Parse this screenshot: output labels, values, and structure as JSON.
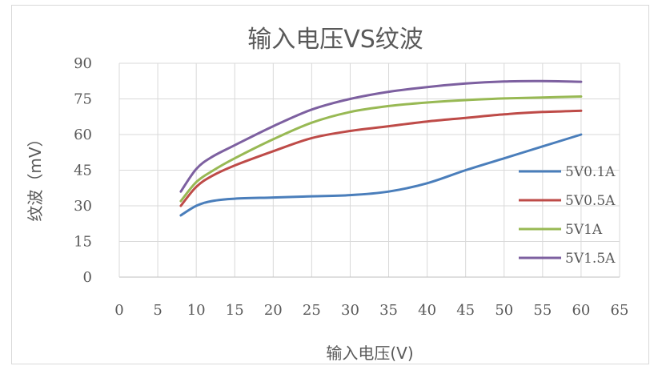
{
  "chart_data": {
    "type": "line",
    "title": "输入电压VS纹波",
    "xlabel": "输入电压(V)",
    "ylabel": "纹波（mV）",
    "xlim": [
      0,
      65
    ],
    "ylim": [
      0,
      90
    ],
    "xticks": [
      0,
      5,
      10,
      15,
      20,
      25,
      30,
      35,
      40,
      45,
      50,
      55,
      60,
      65
    ],
    "yticks": [
      0,
      15,
      30,
      45,
      60,
      75,
      90
    ],
    "grid": true,
    "legend_position": "right",
    "series": [
      {
        "name": "5V0.1A",
        "color": "#4a7ebb",
        "x": [
          8,
          10,
          12,
          15,
          20,
          25,
          30,
          35,
          40,
          45,
          50,
          55,
          60
        ],
        "y": [
          26,
          30,
          32,
          33,
          33.5,
          34,
          34.5,
          36,
          39.5,
          45,
          50,
          55,
          60
        ]
      },
      {
        "name": "5V0.5A",
        "color": "#be4b48",
        "x": [
          8,
          10,
          12,
          15,
          20,
          25,
          30,
          35,
          40,
          45,
          50,
          55,
          60
        ],
        "y": [
          30,
          38,
          42.5,
          47,
          53,
          58.5,
          61.5,
          63.5,
          65.5,
          67,
          68.5,
          69.5,
          70
        ]
      },
      {
        "name": "5V1A",
        "color": "#98b954",
        "x": [
          8,
          10,
          12,
          15,
          20,
          25,
          30,
          35,
          40,
          45,
          50,
          55,
          60
        ],
        "y": [
          32,
          40,
          44.5,
          50,
          58,
          65,
          69.5,
          72,
          73.5,
          74.5,
          75.2,
          75.6,
          76
        ]
      },
      {
        "name": "5V1.5A",
        "color": "#7d60a0",
        "x": [
          8,
          10,
          12,
          15,
          20,
          25,
          30,
          35,
          40,
          45,
          50,
          55,
          60
        ],
        "y": [
          36,
          45.5,
          50.5,
          55.5,
          63.5,
          70.5,
          75,
          78,
          80,
          81.5,
          82.3,
          82.5,
          82.2
        ]
      }
    ]
  }
}
